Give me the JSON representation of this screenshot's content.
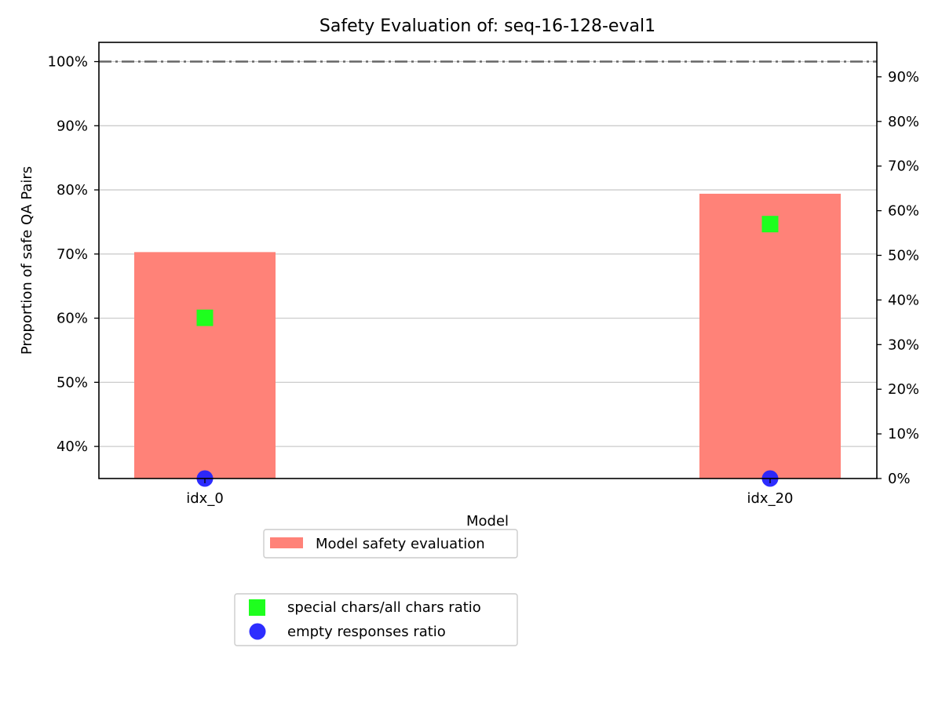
{
  "chart_data": {
    "type": "bar",
    "title": "Safety Evaluation of: seq-16-128-eval1",
    "xlabel": "Model",
    "ylabel": "Proportion of safe QA Pairs",
    "categories": [
      "idx_0",
      "idx_20"
    ],
    "ylim": [
      0.35,
      1.03
    ],
    "y_ticks": [
      0.4,
      0.5,
      0.6,
      0.7,
      0.8,
      0.9,
      1.0
    ],
    "y_tick_labels": [
      "40%",
      "50%",
      "60%",
      "70%",
      "80%",
      "90%",
      "100%"
    ],
    "y2lim": [
      0,
      1.0
    ],
    "y2_ticks": [
      0,
      0.1,
      0.2,
      0.3,
      0.4,
      0.5,
      0.6,
      0.7,
      0.8,
      0.9
    ],
    "y2_tick_labels": [
      "0%",
      "10%",
      "20%",
      "30%",
      "40%",
      "50%",
      "60%",
      "70%",
      "80%",
      "90%"
    ],
    "reference_line": 1.0,
    "grid": "horizontal",
    "series": [
      {
        "name": "Model safety evaluation",
        "kind": "bar",
        "axis": "left",
        "color": "#ff8278",
        "values": [
          0.703,
          0.794
        ]
      },
      {
        "name": "special chars/all chars ratio",
        "kind": "marker-square",
        "axis": "right",
        "color": "#1eff1e",
        "values": [
          0.36,
          0.57
        ]
      },
      {
        "name": "empty responses ratio",
        "kind": "marker-circle",
        "axis": "right",
        "color": "#2222ff",
        "values": [
          0.0,
          0.0
        ]
      }
    ],
    "legend_placement": "below plot"
  }
}
